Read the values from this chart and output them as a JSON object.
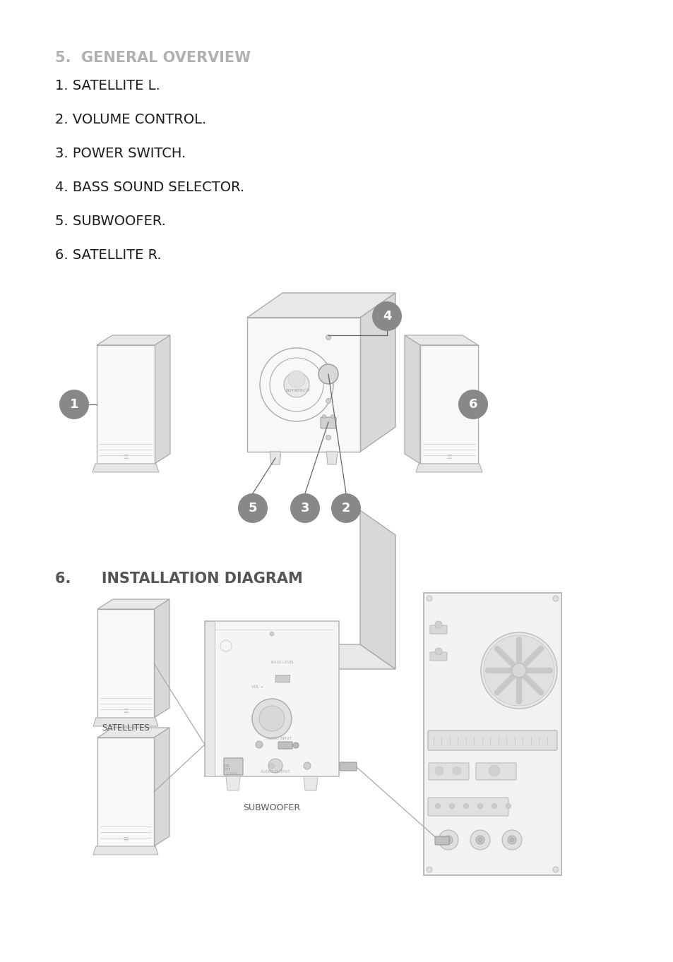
{
  "bg_color": "#ffffff",
  "title1": "5.  GENERAL OVERVIEW",
  "title1_color": "#b0b0b0",
  "items": [
    "1. SATELLITE L.",
    "2. VOLUME CONTROL.",
    "3. POWER SWITCH.",
    "4. BASS SOUND SELECTOR.",
    "5. SUBWOOFER.",
    "6. SATELLITE R."
  ],
  "items_color": "#1a1a1a",
  "items_fontsize": 15,
  "title2": "6.      INSTALLATION DIAGRAM",
  "title2_color": "#555555",
  "label_satellites": "SATELLITES",
  "label_subwoofer": "SUBWOOFER",
  "badge_color": "#888888",
  "badge_text_color": "#ffffff",
  "line_color": "#666666",
  "edge_color": "#aaaaaa",
  "face_color": "#f8f8f8",
  "face_dark": "#e8e8e8",
  "face_darker": "#d8d8d8"
}
